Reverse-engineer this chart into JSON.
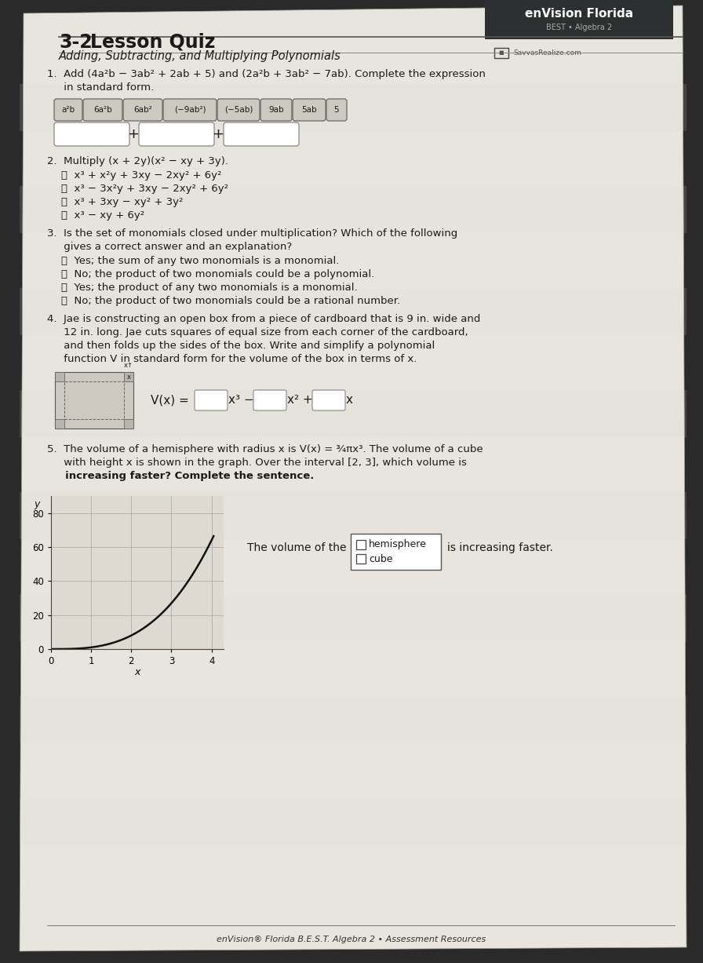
{
  "bg_color": "#2a2a2a",
  "paper_color": "#d8d4ce",
  "paper_light": "#e8e4de",
  "title_num": "3-2",
  "title_text": "Lesson Quiz",
  "subtitle": "Adding, Subtracting, and Multiplying Polynomials",
  "logo_text1": "enVision Florida",
  "logo_text2": "BEST • Algebra 2",
  "logo_bg": "#2d3030",
  "q1_line1": "1.  Add (4a²b − 3ab² + 2ab + 5) and (2a²b + 3ab² − 7ab). Complete the expression",
  "q1_line2": "     in standard form.",
  "q1_chips": [
    "a²b",
    "6a²b",
    "6ab²",
    "(−9ab²)",
    "(−5ab)",
    "9ab",
    "5ab",
    "5"
  ],
  "q1_chip_widths": [
    30,
    44,
    44,
    62,
    48,
    34,
    36,
    20
  ],
  "q2_intro": "2.  Multiply (x + 2y)(x² − xy + 3y).",
  "q2_opts": [
    "Ⓐ  x³ + x²y + 3xy − 2xy² + 6y²",
    "Ⓑ  x³ − 3x²y + 3xy − 2xy² + 6y²",
    "Ⓒ  x³ + 3xy − xy² + 3y²",
    "Ⓓ  x³ − xy + 6y²"
  ],
  "q3_line1": "3.  Is the set of monomials closed under multiplication? Which of the following",
  "q3_line2": "     gives a correct answer and an explanation?",
  "q3_opts": [
    "Ⓐ  Yes; the sum of any two monomials is a monomial.",
    "Ⓑ  No; the product of two monomials could be a polynomial.",
    "Ⓒ  Yes; the product of any two monomials is a monomial.",
    "Ⓓ  No; the product of two monomials could be a rational number."
  ],
  "q4_line1": "4.  Jae is constructing an open box from a piece of cardboard that is 9 in. wide and",
  "q4_line2": "     12 in. long. Jae cuts squares of equal size from each corner of the cardboard,",
  "q4_line3": "     and then folds up the sides of the box. Write and simplify a polynomial",
  "q4_line4": "     function V in standard form for the volume of the box in terms of x.",
  "q5_line1": "5.  The volume of a hemisphere with radius x is V(x) = ¾πx³. The volume of a cube",
  "q5_line2": "     with height x is shown in the graph. Over the interval [2, 3], which volume is",
  "q5_line3": "     increasing faster? Complete the sentence.",
  "q5_the_vol": "The volume of the",
  "q5_choices": [
    "hemisphere",
    "cube"
  ],
  "q5_suffix": "is increasing faster.",
  "graph_yticks": [
    0,
    20,
    40,
    60,
    80
  ],
  "graph_xticks": [
    0,
    1,
    2,
    3,
    4
  ],
  "footer": "enVision® Florida B.E.S.T. Algebra 2 • Assessment Resources",
  "text_color": "#1a1a1a",
  "chip_bg": "#ccc9c0",
  "chip_border": "#666666",
  "box_bg": "#e8e5dd"
}
